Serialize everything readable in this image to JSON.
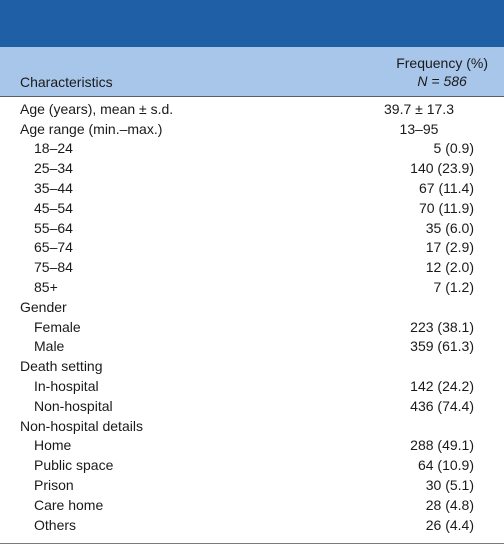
{
  "header": {
    "characteristics": "Characteristics",
    "frequency": "Frequency (%)",
    "n_label": "N = 586"
  },
  "rows": [
    {
      "label": "Age (years), mean ± s.d.",
      "value": "39.7 ± 17.3"
    },
    {
      "label": "Age range (min.–max.)",
      "value": "13–95"
    },
    {
      "label": "18–24",
      "value": "5 (0.9)"
    },
    {
      "label": "25–34",
      "value": "140 (23.9)"
    },
    {
      "label": "35–44",
      "value": "67 (11.4)"
    },
    {
      "label": "45–54",
      "value": "70 (11.9)"
    },
    {
      "label": "55–64",
      "value": "35 (6.0)"
    },
    {
      "label": "65–74",
      "value": "17 (2.9)"
    },
    {
      "label": "75–84",
      "value": "12 (2.0)"
    },
    {
      "label": "85+",
      "value": "7 (1.2)"
    },
    {
      "label": "Gender",
      "value": ""
    },
    {
      "label": "Female",
      "value": "223 (38.1)"
    },
    {
      "label": "Male",
      "value": "359 (61.3)"
    },
    {
      "label": "Death setting",
      "value": ""
    },
    {
      "label": "In-hospital",
      "value": "142 (24.2)"
    },
    {
      "label": "Non-hospital",
      "value": "436 (74.4)"
    },
    {
      "label": "Non-hospital details",
      "value": ""
    },
    {
      "label": "Home",
      "value": "288 (49.1)"
    },
    {
      "label": "Public space",
      "value": "64 (10.9)"
    },
    {
      "label": "Prison",
      "value": "30 (5.1)"
    },
    {
      "label": "Care home",
      "value": "28 (4.8)"
    },
    {
      "label": "Others",
      "value": "26 (4.4)"
    }
  ],
  "colors": {
    "title_band": "#1f5fa5",
    "header_band": "#a8c6ea"
  }
}
